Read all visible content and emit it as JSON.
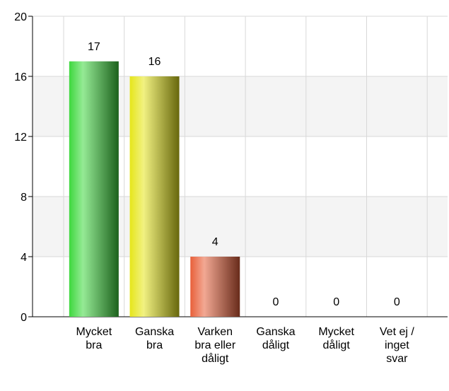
{
  "chart_data": {
    "type": "bar",
    "categories": [
      "Mycket bra",
      "Ganska bra",
      "Varken bra eller dåligt",
      "Ganska dåligt",
      "Mycket dåligt",
      "Vet ej / inget svar"
    ],
    "values": [
      17,
      16,
      4,
      0,
      0,
      0
    ],
    "colors": [
      "#3ed83e",
      "#e6e61a",
      "#e8603a",
      "#c03030",
      "#902020",
      "#909090"
    ],
    "ylim": [
      0,
      20
    ],
    "yticks": [
      0,
      4,
      8,
      12,
      16,
      20
    ],
    "grid": true
  }
}
